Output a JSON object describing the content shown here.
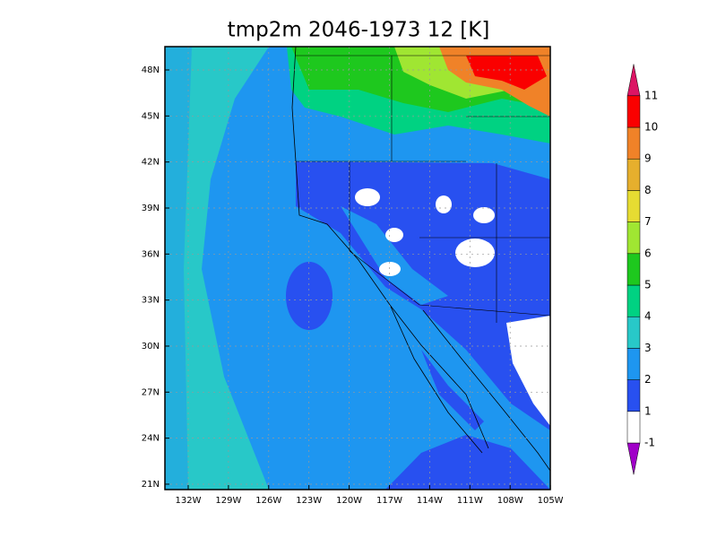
{
  "title": "tmp2m 2046-1973 12 [K]",
  "lat_labels": [
    "48N",
    "45N",
    "42N",
    "39N",
    "36N",
    "33N",
    "30N",
    "27N",
    "24N",
    "21N"
  ],
  "lon_labels": [
    "132W",
    "129W",
    "126W",
    "123W",
    "120W",
    "117W",
    "114W",
    "111W",
    "108W",
    "105W"
  ],
  "colorbar": {
    "levels": [
      -1,
      1,
      2,
      3,
      4,
      5,
      6,
      7,
      8,
      9,
      10,
      11
    ],
    "colors": [
      "#ffffff",
      "#2850f0",
      "#1e96f0",
      "#28c8c8",
      "#00d282",
      "#1ec81e",
      "#a0e632",
      "#e6dc32",
      "#e6af2d",
      "#f08228",
      "#fa0000"
    ],
    "under_color": "#a000c8",
    "over_color": "#dc1464"
  }
}
